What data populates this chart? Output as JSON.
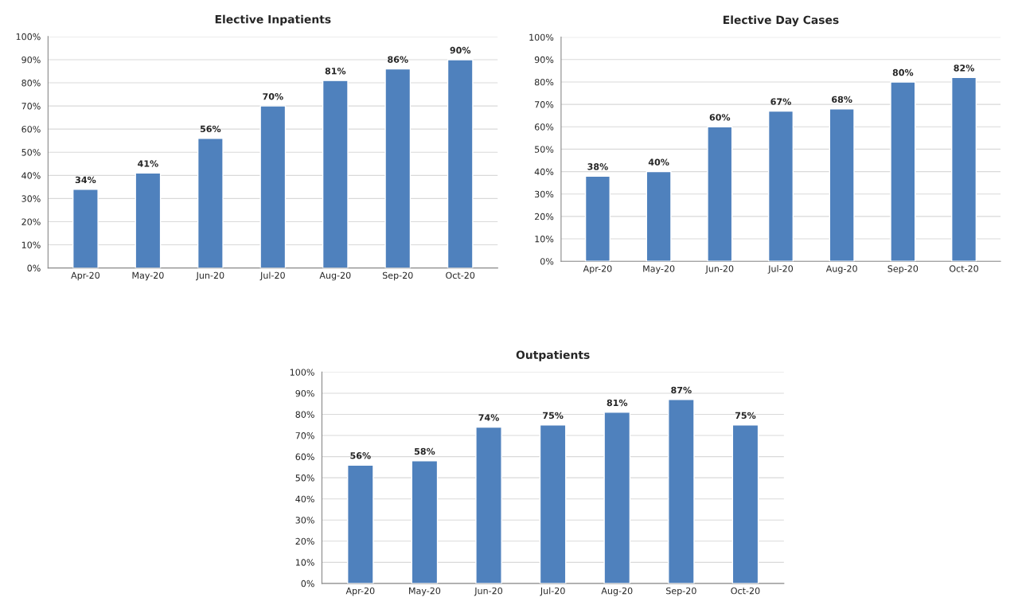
{
  "chart_data": [
    {
      "type": "bar",
      "title": "Elective Inpatients",
      "categories": [
        "Apr-20",
        "May-20",
        "Jun-20",
        "Jul-20",
        "Aug-20",
        "Sep-20",
        "Oct-20"
      ],
      "values": [
        34,
        41,
        56,
        70,
        81,
        86,
        90
      ],
      "value_labels": [
        "34%",
        "41%",
        "56%",
        "70%",
        "81%",
        "86%",
        "90%"
      ],
      "color": "#4f81bd",
      "ylim": [
        0,
        100
      ],
      "yticks": [
        {
          "value": 0,
          "label": "0%"
        },
        {
          "value": 10,
          "label": "10%"
        },
        {
          "value": 20,
          "label": "20%"
        },
        {
          "value": 30,
          "label": "30%"
        },
        {
          "value": 40,
          "label": "40%"
        },
        {
          "value": 50,
          "label": "50%"
        },
        {
          "value": 60,
          "label": "60%"
        },
        {
          "value": 70,
          "label": "70%"
        },
        {
          "value": 80,
          "label": "80%"
        },
        {
          "value": 90,
          "label": "90%"
        },
        {
          "value": 100,
          "label": "100%"
        }
      ],
      "grid": "y"
    },
    {
      "type": "bar",
      "title": "Elective Day Cases",
      "categories": [
        "Apr-20",
        "May-20",
        "Jun-20",
        "Jul-20",
        "Aug-20",
        "Sep-20",
        "Oct-20"
      ],
      "values": [
        38,
        40,
        60,
        67,
        68,
        80,
        82
      ],
      "value_labels": [
        "38%",
        "40%",
        "60%",
        "67%",
        "68%",
        "80%",
        "82%"
      ],
      "color": "#4f81bd",
      "ylim": [
        0,
        100
      ],
      "yticks": [
        {
          "value": 0,
          "label": "0%"
        },
        {
          "value": 10,
          "label": "10%"
        },
        {
          "value": 20,
          "label": "20%"
        },
        {
          "value": 30,
          "label": "30%"
        },
        {
          "value": 40,
          "label": "40%"
        },
        {
          "value": 50,
          "label": "50%"
        },
        {
          "value": 60,
          "label": "60%"
        },
        {
          "value": 70,
          "label": "70%"
        },
        {
          "value": 80,
          "label": "80%"
        },
        {
          "value": 90,
          "label": "90%"
        },
        {
          "value": 100,
          "label": "100%"
        }
      ],
      "grid": "y"
    },
    {
      "type": "bar",
      "title": "Outpatients",
      "categories": [
        "Apr-20",
        "May-20",
        "Jun-20",
        "Jul-20",
        "Aug-20",
        "Sep-20",
        "Oct-20"
      ],
      "values": [
        56,
        58,
        74,
        75,
        81,
        87,
        75
      ],
      "value_labels": [
        "56%",
        "58%",
        "74%",
        "75%",
        "81%",
        "87%",
        "75%"
      ],
      "color": "#4f81bd",
      "ylim": [
        0,
        100
      ],
      "yticks": [
        {
          "value": 0,
          "label": "0%"
        },
        {
          "value": 10,
          "label": "10%"
        },
        {
          "value": 20,
          "label": "20%"
        },
        {
          "value": 30,
          "label": "30%"
        },
        {
          "value": 40,
          "label": "40%"
        },
        {
          "value": 50,
          "label": "50%"
        },
        {
          "value": 60,
          "label": "60%"
        },
        {
          "value": 70,
          "label": "70%"
        },
        {
          "value": 80,
          "label": "80%"
        },
        {
          "value": 90,
          "label": "90%"
        },
        {
          "value": 100,
          "label": "100%"
        }
      ],
      "grid": "y"
    }
  ]
}
